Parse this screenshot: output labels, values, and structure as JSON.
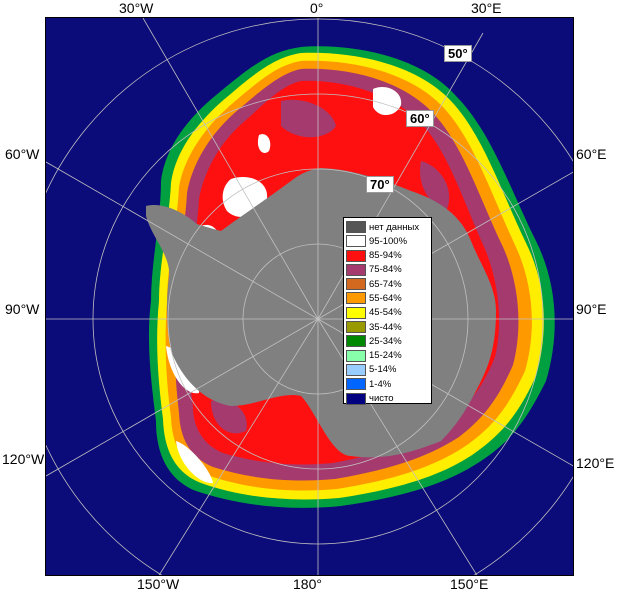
{
  "map": {
    "top_longitudes": [
      "30°W",
      "0°",
      "30°E"
    ],
    "bottom_longitudes": [
      "150°W",
      "180°",
      "150°E"
    ],
    "left_longitudes": [
      "60°W",
      "90°W",
      "120°W"
    ],
    "right_longitudes": [
      "60°E",
      "90°E",
      "120°E"
    ],
    "latitude_labels": [
      "50°",
      "60°",
      "70°"
    ],
    "colors": {
      "ocean": "#0b0b7a",
      "land": "#808080",
      "grid": "#c0c0c0"
    }
  },
  "legend": {
    "items": [
      {
        "label": "нет данных",
        "color": "#555555"
      },
      {
        "label": "95-100%",
        "color": "#ffffff"
      },
      {
        "label": "85-94%",
        "color": "#ff1010"
      },
      {
        "label": "75-84%",
        "color": "#a53a6e"
      },
      {
        "label": "65-74%",
        "color": "#d2691e"
      },
      {
        "label": "55-64%",
        "color": "#ff9900"
      },
      {
        "label": "45-54%",
        "color": "#ffff00"
      },
      {
        "label": "35-44%",
        "color": "#999900"
      },
      {
        "label": "25-34%",
        "color": "#008800"
      },
      {
        "label": "15-24%",
        "color": "#88ffaa"
      },
      {
        "label": "5-14%",
        "color": "#99ccff"
      },
      {
        "label": "1-4%",
        "color": "#0066ff"
      },
      {
        "label": "чисто",
        "color": "#000080"
      }
    ]
  }
}
